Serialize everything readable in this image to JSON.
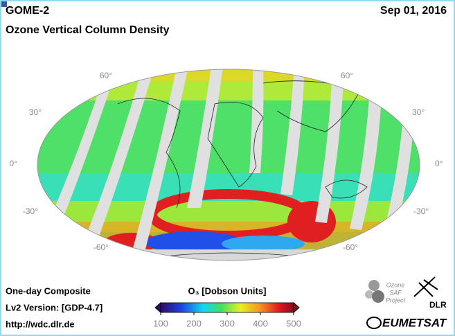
{
  "header": {
    "instrument": "GOME-2",
    "date": "Sep 01, 2016",
    "title": "Ozone Vertical Column Density"
  },
  "map": {
    "lat_labels_left": [
      "60°",
      "30°",
      "0°",
      "-30°",
      "-60°"
    ],
    "lat_labels_right": [
      "60°",
      "30°",
      "0°",
      "-30°",
      "-60°"
    ]
  },
  "footer": {
    "composite": "One-day Composite",
    "version": "Lv2 Version: [GDP-4.7]",
    "url": "http://wdc.dlr.de"
  },
  "colorbar": {
    "label": "O₃ [Dobson Units]",
    "lim": [
      100,
      500
    ],
    "ticks": [
      100,
      200,
      300,
      400,
      500
    ]
  },
  "logos": {
    "saf": [
      "Ozone",
      "SAF",
      "Project"
    ],
    "dlr": "DLR",
    "eumetsat": "EUMETSAT"
  }
}
